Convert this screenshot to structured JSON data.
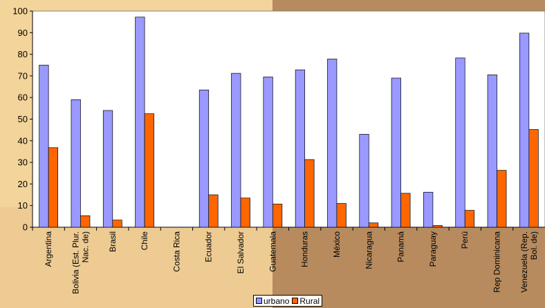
{
  "colors": {
    "urbano": "#9999ff",
    "rural": "#ff6600",
    "plot_bg": "#ffffff",
    "bg_light": "#f3d49a",
    "bg_dark": "#b78b5e"
  },
  "legend": {
    "position": "bottom",
    "urbano_label": "urbano",
    "rural_label": "Rural"
  },
  "chart_data": {
    "type": "bar",
    "title": "",
    "xlabel": "",
    "ylabel": "",
    "ylim": [
      0,
      100
    ],
    "yticks": [
      0,
      10,
      20,
      30,
      40,
      50,
      60,
      70,
      80,
      90,
      100
    ],
    "grid": false,
    "categories": [
      [
        "Argentina"
      ],
      [
        "Bolivia (Est. Plur.",
        "Nac. de)"
      ],
      [
        "Brasil"
      ],
      [
        "Chile"
      ],
      [
        "Costa Rica"
      ],
      [
        "Ecuador"
      ],
      [
        "El Salvador"
      ],
      [
        "Guatemala"
      ],
      [
        "Honduras"
      ],
      [
        "México"
      ],
      [
        "Nicaragua"
      ],
      [
        "Panamá"
      ],
      [
        "Paraguay"
      ],
      [
        "Perú"
      ],
      [
        "Rep Dominicana"
      ],
      [
        "Venezuela (Rep.",
        "Bol. de)"
      ]
    ],
    "series": [
      {
        "name": "urbano",
        "values": [
          75,
          59,
          54,
          97.2,
          0,
          63.5,
          71.2,
          69.5,
          72.8,
          77.8,
          43,
          69,
          16.2,
          78.3,
          70.5,
          89.8
        ]
      },
      {
        "name": "Rural",
        "values": [
          36.8,
          5.3,
          3.3,
          52.5,
          0,
          15,
          13.5,
          10.7,
          31.3,
          11,
          2,
          15.7,
          0.8,
          7.8,
          26.3,
          45.2
        ]
      }
    ]
  }
}
